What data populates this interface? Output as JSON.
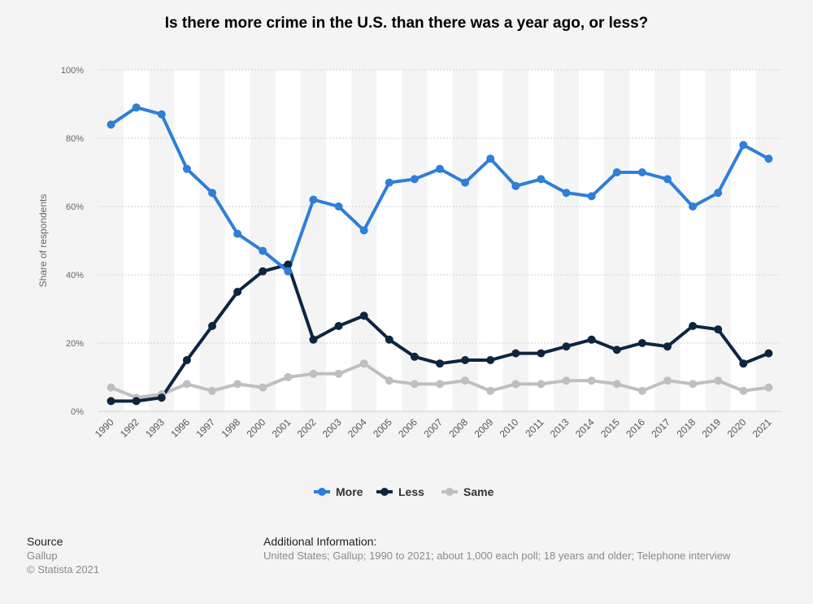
{
  "chart_data": {
    "type": "line",
    "title": "Is there more crime in the U.S. than there was a year ago, or less?",
    "ylabel": "Share of respondents",
    "xlabel": "",
    "ylim": [
      0,
      100
    ],
    "y_ticks": [
      0,
      20,
      40,
      60,
      80,
      100
    ],
    "y_tick_labels": [
      "0%",
      "20%",
      "40%",
      "60%",
      "80%",
      "100%"
    ],
    "grid": true,
    "legend_position": "bottom-center",
    "categories": [
      "1990",
      "1992",
      "1993",
      "1996",
      "1997",
      "1998",
      "2000",
      "2001",
      "2002",
      "2003",
      "2004",
      "2005",
      "2006",
      "2007",
      "2008",
      "2009",
      "2010",
      "2011",
      "2013",
      "2014",
      "2015",
      "2016",
      "2017",
      "2018",
      "2019",
      "2020",
      "2021"
    ],
    "series": [
      {
        "name": "More",
        "color": "#2f7ed8",
        "values": [
          84,
          89,
          87,
          71,
          64,
          52,
          47,
          41,
          62,
          60,
          53,
          67,
          68,
          71,
          67,
          74,
          66,
          68,
          64,
          63,
          70,
          70,
          68,
          60,
          64,
          78,
          74
        ]
      },
      {
        "name": "Less",
        "color": "#0d2540",
        "values": [
          3,
          3,
          4,
          15,
          25,
          35,
          41,
          43,
          21,
          25,
          28,
          21,
          16,
          14,
          15,
          15,
          17,
          17,
          19,
          21,
          18,
          20,
          19,
          25,
          24,
          14,
          17
        ]
      },
      {
        "name": "Same",
        "color": "#bfbfbf",
        "values": [
          7,
          4,
          5,
          8,
          6,
          8,
          7,
          10,
          11,
          11,
          14,
          9,
          8,
          8,
          9,
          6,
          8,
          8,
          9,
          9,
          8,
          6,
          9,
          8,
          9,
          6,
          7
        ]
      }
    ]
  },
  "footer": {
    "source_heading": "Source",
    "source_lines": [
      "Gallup",
      "© Statista 2021"
    ],
    "info_heading": "Additional Information:",
    "info_text": "United States; Gallup; 1990 to 2021; about 1,000 each poll; 18 years and older; Telephone interview"
  }
}
